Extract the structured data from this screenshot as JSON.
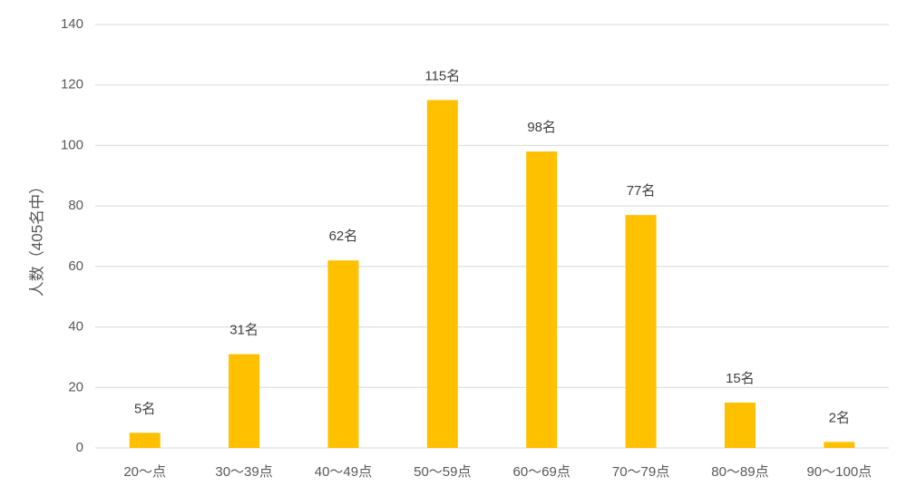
{
  "chart_data": {
    "type": "bar",
    "y_label": "人数（405名中）",
    "categories": [
      "20～点",
      "30～39点",
      "40～49点",
      "50～59点",
      "60～69点",
      "70～79点",
      "80～89点",
      "90～100点"
    ],
    "values": [
      5,
      31,
      62,
      115,
      98,
      77,
      15,
      2
    ],
    "value_labels": [
      "5名",
      "31名",
      "62名",
      "115名",
      "98名",
      "77名",
      "15名",
      "2名"
    ],
    "color": "#ffc000",
    "ylim": [
      0,
      140
    ],
    "yticks": [
      0,
      20,
      40,
      60,
      80,
      100,
      120,
      140
    ],
    "grid": true
  }
}
